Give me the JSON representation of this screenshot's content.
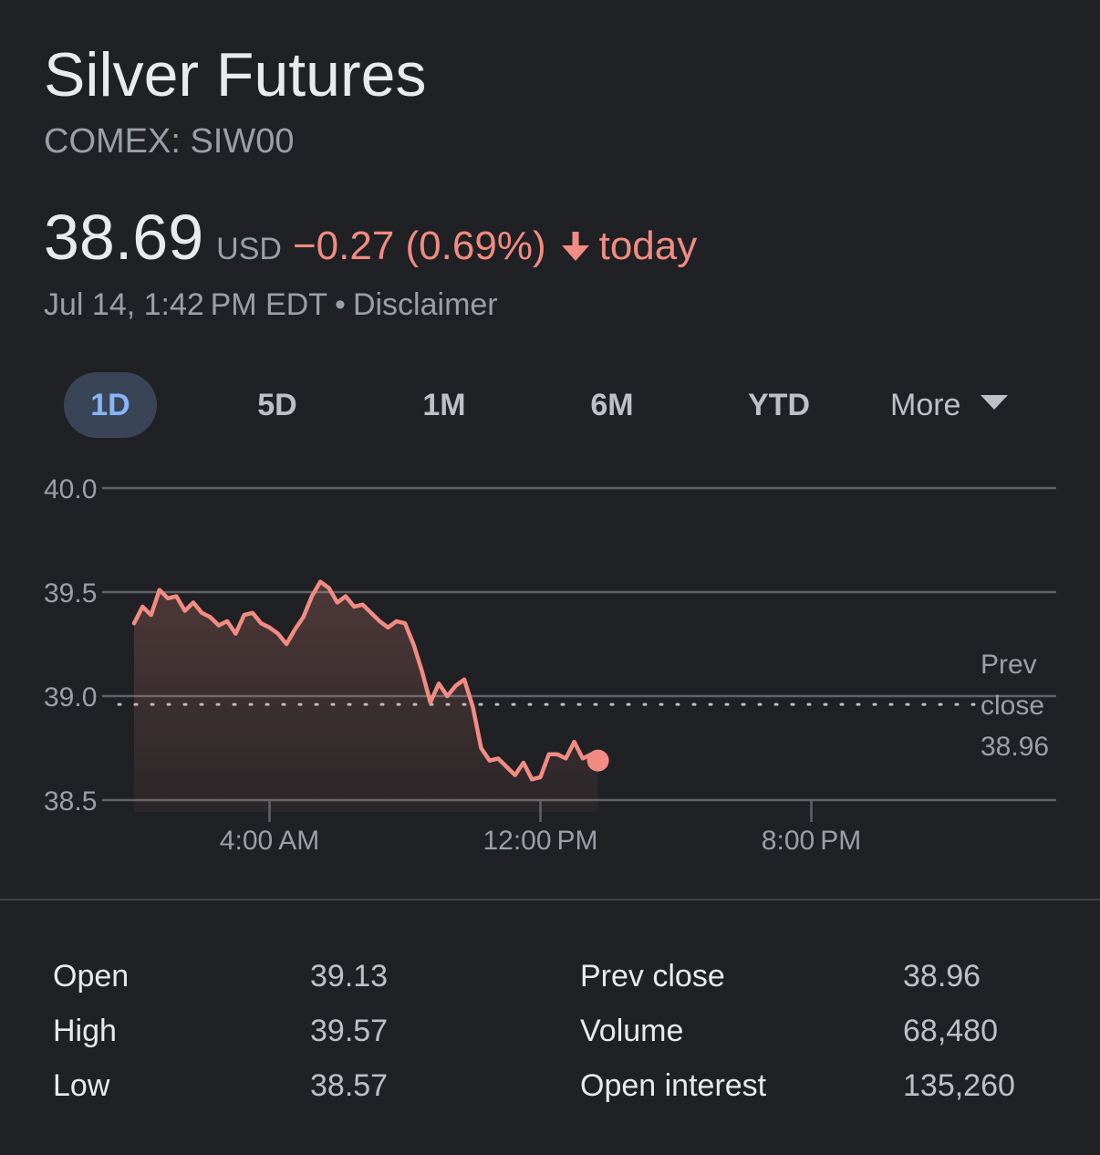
{
  "header": {
    "title": "Silver Futures",
    "exchange": "COMEX: SIW00",
    "price": "38.69",
    "currency": "USD",
    "change": "−0.27 (0.69%)",
    "change_direction": "down",
    "period": "today",
    "timestamp": "Jul 14, 1:42 PM EDT",
    "separator": "•",
    "disclaimer": "Disclaimer",
    "colors": {
      "negative": "#f28b82",
      "tab_active_text": "#8ab4f8",
      "tab_active_bg": "#394457"
    }
  },
  "tabs": [
    {
      "label": "1D",
      "active": true
    },
    {
      "label": "5D",
      "active": false
    },
    {
      "label": "1M",
      "active": false
    },
    {
      "label": "6M",
      "active": false
    },
    {
      "label": "YTD",
      "active": false
    }
  ],
  "more_tab": {
    "label": "More",
    "icon": "chevron-down-icon"
  },
  "chart_data": {
    "type": "area",
    "title": "",
    "xlabel": "",
    "ylabel": "",
    "ylim": [
      38.5,
      40.0
    ],
    "yticks": [
      38.5,
      39.0,
      39.5,
      40.0
    ],
    "ytick_labels": [
      "38.5",
      "39.0",
      "39.5",
      "40.0"
    ],
    "x_unit": "hours since midnight",
    "xlim": [
      0,
      24
    ],
    "xticks": [
      4,
      12,
      20
    ],
    "xtick_labels": [
      "4:00 AM",
      "12:00 PM",
      "8:00 PM"
    ],
    "grid": true,
    "line_color": "#f28b82",
    "reference_line": {
      "value": 38.96,
      "style": "dotted",
      "label_lines": [
        "Prev",
        "close",
        "38.96"
      ]
    },
    "series": [
      {
        "x": [
          0.0,
          0.25,
          0.5,
          0.75,
          1.0,
          1.25,
          1.5,
          1.75,
          2.0,
          2.25,
          2.5,
          2.75,
          3.0,
          3.25,
          3.5,
          3.75,
          4.0,
          4.25,
          4.5,
          4.75,
          5.0,
          5.25,
          5.5,
          5.75,
          6.0,
          6.25,
          6.5,
          6.75,
          7.0,
          7.25,
          7.5,
          7.75,
          8.0,
          8.25,
          8.5,
          8.75,
          9.0,
          9.25,
          9.5,
          9.75,
          10.0,
          10.25,
          10.5,
          10.75,
          11.0,
          11.25,
          11.5,
          11.75,
          12.0,
          12.25,
          12.5,
          12.75,
          13.0,
          13.25,
          13.5,
          13.7
        ],
        "values": [
          39.35,
          39.43,
          39.39,
          39.51,
          39.47,
          39.48,
          39.41,
          39.45,
          39.4,
          39.38,
          39.34,
          39.36,
          39.3,
          39.39,
          39.4,
          39.35,
          39.33,
          39.3,
          39.25,
          39.32,
          39.38,
          39.48,
          39.55,
          39.52,
          39.45,
          39.48,
          39.43,
          39.44,
          39.4,
          39.36,
          39.33,
          39.36,
          39.35,
          39.25,
          39.12,
          38.97,
          39.06,
          39.0,
          39.05,
          39.08,
          38.95,
          38.75,
          38.69,
          38.7,
          38.66,
          38.62,
          38.68,
          38.6,
          38.61,
          38.72,
          38.72,
          38.7,
          38.78,
          38.7,
          38.72,
          38.69
        ]
      }
    ]
  },
  "stats": {
    "left": [
      {
        "label": "Open",
        "value": "39.13"
      },
      {
        "label": "High",
        "value": "39.57"
      },
      {
        "label": "Low",
        "value": "38.57"
      }
    ],
    "right": [
      {
        "label": "Prev close",
        "value": "38.96"
      },
      {
        "label": "Volume",
        "value": "68,480"
      },
      {
        "label": "Open interest",
        "value": "135,260"
      }
    ]
  }
}
